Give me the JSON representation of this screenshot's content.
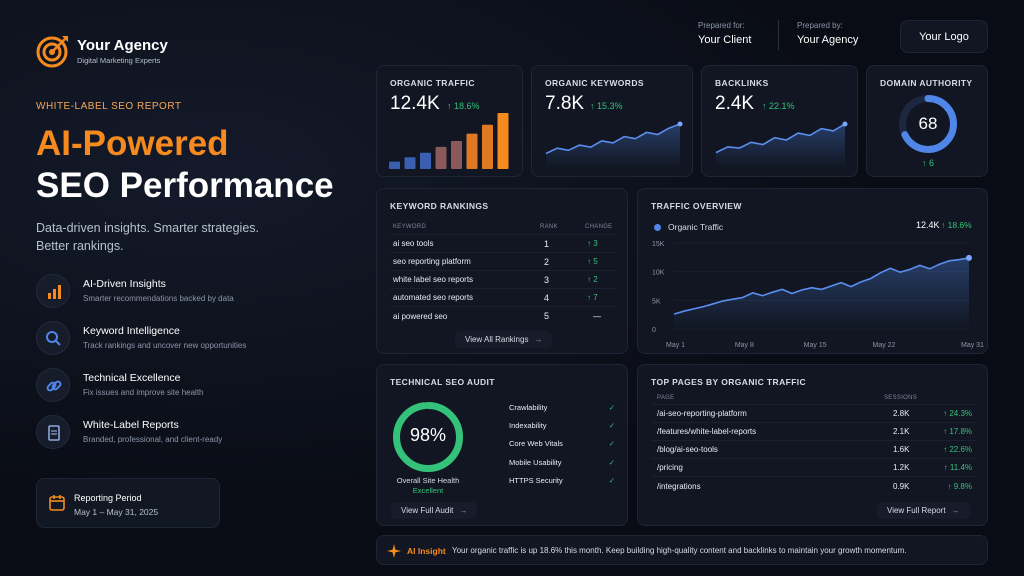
{
  "brand": {
    "name": "Your Agency",
    "tagline": "Digital Marketing Experts"
  },
  "header": {
    "prepared_for_label": "Prepared for:",
    "prepared_for": "Your Client",
    "prepared_by_label": "Prepared by:",
    "prepared_by": "Your Agency",
    "logo_label": "Your Logo"
  },
  "hero": {
    "eyebrow": "WHITE-LABEL SEO REPORT",
    "title_line1": "AI-Powered",
    "title_line2": "SEO Performance",
    "subtitle_line1": "Data-driven insights. Smarter strategies.",
    "subtitle_line2": "Better rankings."
  },
  "features": [
    {
      "icon": "bar-chart-icon",
      "title": "AI-Driven Insights",
      "desc": "Smarter recommendations backed by data"
    },
    {
      "icon": "search-icon",
      "title": "Keyword Intelligence",
      "desc": "Track rankings and uncover new opportunities"
    },
    {
      "icon": "link-icon",
      "title": "Technical Excellence",
      "desc": "Fix issues and improve site health"
    },
    {
      "icon": "document-icon",
      "title": "White-Label Reports",
      "desc": "Branded, professional, and client-ready"
    }
  ],
  "period": {
    "label": "Reporting Period",
    "value": "May 1 – May 31, 2025"
  },
  "kpis": {
    "organic_traffic": {
      "label": "ORGANIC TRAFFIC",
      "value": "12.4K",
      "change": "↑ 18.6%",
      "bars": [
        1,
        1.6,
        2.2,
        3,
        3.8,
        4.8,
        6,
        7.6
      ]
    },
    "organic_keywords": {
      "label": "ORGANIC KEYWORDS",
      "value": "7.8K",
      "change": "↑ 15.3%",
      "trend": [
        2,
        3,
        2.6,
        3.6,
        3.2,
        4.4,
        4,
        5.2,
        4.8,
        6,
        5.6,
        6.8,
        7.6
      ]
    },
    "backlinks": {
      "label": "BACKLINKS",
      "value": "2.4K",
      "change": "↑ 22.1%",
      "trend": [
        2,
        3,
        2.8,
        3.8,
        3.4,
        4.6,
        4.2,
        5.4,
        5,
        6.2,
        5.8,
        7
      ]
    },
    "domain_authority": {
      "label": "DOMAIN AUTHORITY",
      "value": "68",
      "score": 68,
      "change": "↑ 6"
    }
  },
  "rankings": {
    "title": "KEYWORD RANKINGS",
    "headers": [
      "KEYWORD",
      "RANK",
      "CHANGE"
    ],
    "rows": [
      {
        "keyword": "ai seo tools",
        "rank": "1",
        "change": "↑ 3"
      },
      {
        "keyword": "seo reporting platform",
        "rank": "2",
        "change": "↑ 5"
      },
      {
        "keyword": "white label seo reports",
        "rank": "3",
        "change": "↑ 2"
      },
      {
        "keyword": "automated seo reports",
        "rank": "4",
        "change": "↑ 7"
      },
      {
        "keyword": "ai powered seo",
        "rank": "5",
        "change": "—"
      }
    ],
    "button": "View All Rankings"
  },
  "traffic": {
    "title": "TRAFFIC OVERVIEW",
    "legend": "Organic Traffic",
    "value": "12.4K",
    "change": "↑ 18.6%",
    "y_ticks": [
      "15K",
      "10K",
      "5K",
      "0"
    ],
    "x_ticks": [
      "May 1",
      "May 8",
      "May 15",
      "May 22",
      "May 31"
    ]
  },
  "chart_data": {
    "type": "line",
    "x": [
      1,
      2,
      3,
      4,
      5,
      6,
      7,
      8,
      9,
      10,
      11,
      12,
      13,
      14,
      15,
      16,
      17,
      18,
      19,
      20,
      21,
      22,
      23,
      24,
      25,
      26,
      27,
      28,
      29,
      30,
      31
    ],
    "series": [
      {
        "name": "Organic Traffic",
        "values": [
          2600,
          3100,
          3500,
          3900,
          4400,
          4900,
          5200,
          5500,
          6300,
          5800,
          6400,
          6900,
          6200,
          6800,
          7200,
          6900,
          7500,
          8100,
          7400,
          8200,
          8800,
          9800,
          10600,
          9900,
          10400,
          11100,
          10500,
          11300,
          11900,
          12100,
          12400
        ]
      }
    ],
    "xlabel": "",
    "ylabel": "",
    "ylim": [
      0,
      15000
    ]
  },
  "audit": {
    "title": "TECHNICAL SEO AUDIT",
    "score": "98%",
    "score_value": 98,
    "health_label": "Overall Site Health",
    "health_status": "Excellent",
    "checks": [
      "Crawlability",
      "Indexability",
      "Core Web Vitals",
      "Mobile Usability",
      "HTTPS Security"
    ],
    "button": "View Full Audit"
  },
  "top_pages": {
    "title": "TOP PAGES BY ORGANIC TRAFFIC",
    "headers": [
      "PAGE",
      "SESSIONS"
    ],
    "rows": [
      {
        "page": "/ai-seo-reporting-platform",
        "sessions": "2.8K",
        "change": "↑ 24.3%"
      },
      {
        "page": "/features/white-label-reports",
        "sessions": "2.1K",
        "change": "↑ 17.8%"
      },
      {
        "page": "/blog/ai-seo-tools",
        "sessions": "1.6K",
        "change": "↑ 22.6%"
      },
      {
        "page": "/pricing",
        "sessions": "1.2K",
        "change": "↑ 11.4%"
      },
      {
        "page": "/integrations",
        "sessions": "0.9K",
        "change": "↑ 9.8%"
      }
    ],
    "button": "View Full Report"
  },
  "insight": {
    "label": "AI Insight",
    "text": "Your organic traffic is up 18.6% this month. Keep building high-quality content and backlinks to maintain your growth momentum."
  },
  "colors": {
    "accent": "#f58a1f",
    "blue": "#4f86e8",
    "green": "#34c27a",
    "bg": "#090c14"
  }
}
